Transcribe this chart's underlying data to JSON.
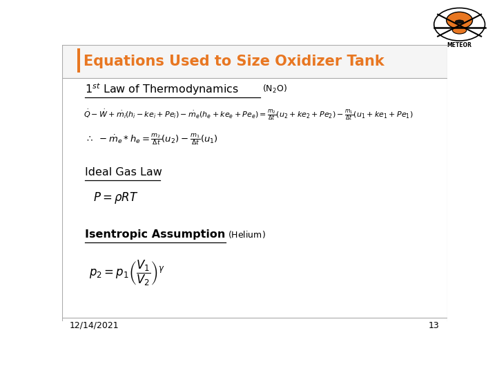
{
  "title": "Equations Used to Size Oxidizer Tank",
  "title_color": "#E87722",
  "bg_color": "#FFFFFF",
  "footer_date": "12/14/2021",
  "footer_page": "13",
  "left_bar_color": "#E87722"
}
